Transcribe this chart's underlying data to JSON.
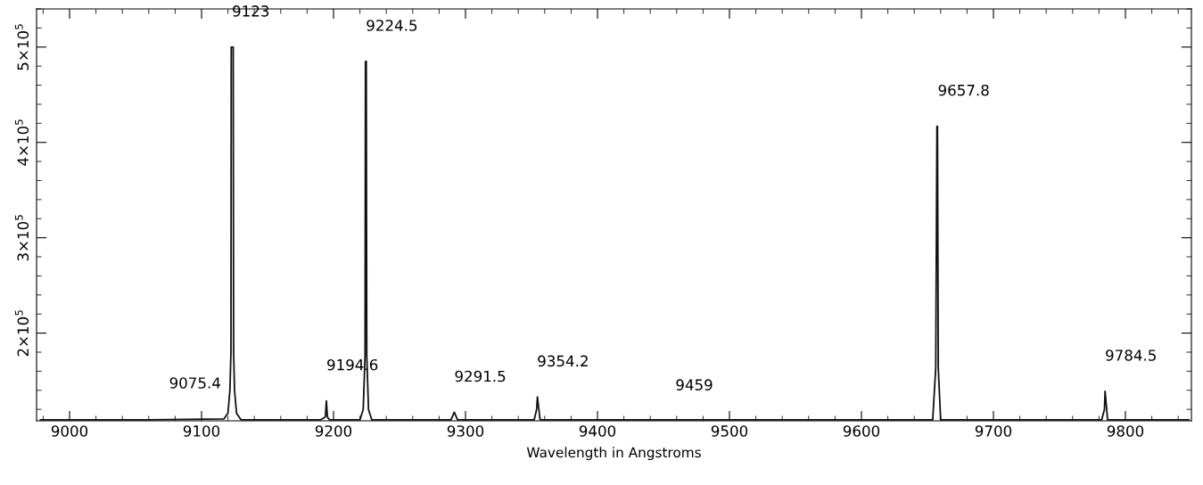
{
  "chart_data": {
    "type": "line",
    "xlabel": "Wavelength in Angstroms",
    "x": [
      8978,
      9060,
      9117,
      9120,
      9121.5,
      9122.3,
      9122.5,
      9124,
      9124.3,
      9125,
      9126.5,
      9130,
      9190,
      9193.8,
      9194.6,
      9195.4,
      9197,
      9220,
      9222.5,
      9223.9,
      9224.2,
      9224.8,
      9225.2,
      9226.5,
      9229,
      9289,
      9291.5,
      9294,
      9352,
      9353.9,
      9354.5,
      9356.5,
      9654,
      9656.3,
      9657.2,
      9657.6,
      9658.2,
      9660,
      9782,
      9784.1,
      9784.6,
      9786.5,
      9848
    ],
    "series": [
      {
        "color": "#111111",
        "values": [
          109000,
          109000,
          110000,
          116000,
          140000,
          181000,
          500000,
          500000,
          181000,
          140000,
          116000,
          109000,
          109000,
          112000,
          129000,
          112000,
          109000,
          109000,
          120000,
          177000,
          485000,
          485000,
          177000,
          120000,
          109000,
          109000,
          117000,
          109000,
          109000,
          120000,
          133000,
          109000,
          109000,
          164000,
          417000,
          417000,
          164000,
          109000,
          109000,
          120000,
          139000,
          109000,
          109000
        ]
      }
    ],
    "xlim": [
      8975,
      9850
    ],
    "ylim": [
      108000,
      540000
    ],
    "xticks": [
      9000,
      9100,
      9200,
      9300,
      9400,
      9500,
      9600,
      9700,
      9800
    ],
    "yticks": [
      {
        "value": 200000,
        "label": "2×10$^{5}$"
      },
      {
        "value": 300000,
        "label": "3×10$^{5}$"
      },
      {
        "value": 400000,
        "label": "4×10$^{5}$"
      },
      {
        "value": 500000,
        "label": "5×10$^{5}$"
      }
    ],
    "annotations": [
      {
        "text": "9075.4",
        "x": 9075.4,
        "y": 110000
      },
      {
        "text": "9123",
        "x": 9123,
        "y": 500000
      },
      {
        "text": "9194.6",
        "x": 9194.6,
        "y": 129000
      },
      {
        "text": "9224.5",
        "x": 9224.5,
        "y": 485000
      },
      {
        "text": "9291.5",
        "x": 9291.5,
        "y": 117000
      },
      {
        "text": "9354.2",
        "x": 9354.2,
        "y": 133000
      },
      {
        "text": "9459",
        "x": 9459,
        "y": 108000
      },
      {
        "text": "9657.8",
        "x": 9657.8,
        "y": 417000
      },
      {
        "text": "9784.5",
        "x": 9784.5,
        "y": 139000
      }
    ],
    "grid": false,
    "legend": false,
    "marker": "none",
    "line_style": "solid"
  }
}
